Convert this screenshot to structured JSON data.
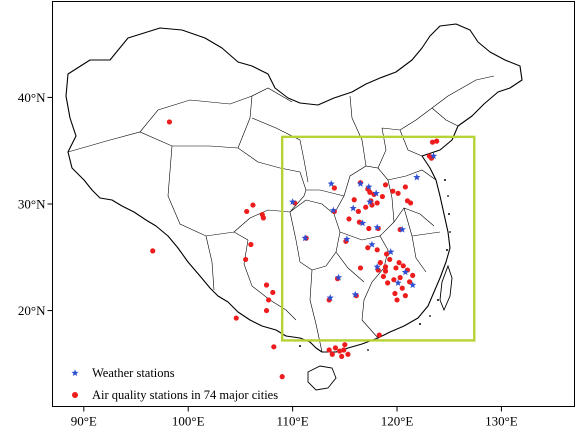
{
  "map": {
    "x_ticks": [
      {
        "value": 90,
        "label": "90°E"
      },
      {
        "value": 100,
        "label": "100°E"
      },
      {
        "value": 110,
        "label": "110°E"
      },
      {
        "value": 120,
        "label": "120°E"
      },
      {
        "value": 130,
        "label": "130°E"
      }
    ],
    "y_ticks": [
      {
        "value": 40,
        "label": "40°N"
      },
      {
        "value": 30,
        "label": "30°N"
      },
      {
        "value": 20,
        "label": "20°N"
      }
    ],
    "lon_range": [
      87,
      137
    ],
    "lat_range": [
      11,
      49
    ],
    "study_box": {
      "lon_min": 109,
      "lon_max": 127.4,
      "lat_min": 17.2,
      "lat_max": 36.3,
      "color": "#b5d334"
    },
    "colors": {
      "weather": "#2e4fd1",
      "air": "#ee1c1c"
    }
  },
  "legend": {
    "weather_label": "Weather stations",
    "air_label": "Air quality stations in 74 major cities",
    "placement": "bottom-left"
  },
  "weather_stations": [
    [
      123.5,
      34.5
    ],
    [
      121.9,
      32.5
    ],
    [
      113.7,
      31.9
    ],
    [
      116.5,
      31.9
    ],
    [
      117.3,
      31.6
    ],
    [
      118.0,
      31.0
    ],
    [
      117.4,
      30.2
    ],
    [
      115.8,
      29.6
    ],
    [
      113.9,
      29.4
    ],
    [
      116.7,
      28.2
    ],
    [
      118.1,
      27.8
    ],
    [
      111.2,
      26.8
    ],
    [
      115.2,
      26.7
    ],
    [
      117.6,
      26.2
    ],
    [
      119.4,
      25.5
    ],
    [
      120.8,
      23.6
    ],
    [
      120.1,
      22.6
    ],
    [
      118.1,
      24.1
    ],
    [
      114.4,
      23.1
    ],
    [
      116.0,
      21.5
    ],
    [
      121.5,
      22.4
    ],
    [
      113.6,
      21.2
    ],
    [
      110.0,
      30.2
    ],
    [
      120.5,
      27.6
    ]
  ],
  "air_stations": [
    [
      98.2,
      37.7
    ],
    [
      123.8,
      35.9
    ],
    [
      123.4,
      35.8
    ],
    [
      123.1,
      34.5
    ],
    [
      123.3,
      34.3
    ],
    [
      116.5,
      32.0
    ],
    [
      117.2,
      31.4
    ],
    [
      117.4,
      31.1
    ],
    [
      117.8,
      30.9
    ],
    [
      117.5,
      30.3
    ],
    [
      118.1,
      30.1
    ],
    [
      117.6,
      29.9
    ],
    [
      117.0,
      29.7
    ],
    [
      118.6,
      30.7
    ],
    [
      120.1,
      31.0
    ],
    [
      115.9,
      30.4
    ],
    [
      116.3,
      29.3
    ],
    [
      114.0,
      29.3
    ],
    [
      115.4,
      28.6
    ],
    [
      116.4,
      28.3
    ],
    [
      117.3,
      27.7
    ],
    [
      118.2,
      27.7
    ],
    [
      120.3,
      27.6
    ],
    [
      121.0,
      30.3
    ],
    [
      111.3,
      26.8
    ],
    [
      115.1,
      26.5
    ],
    [
      117.2,
      25.9
    ],
    [
      118.1,
      25.7
    ],
    [
      119.0,
      25.3
    ],
    [
      119.3,
      24.8
    ],
    [
      120.2,
      24.5
    ],
    [
      119.9,
      24.0
    ],
    [
      120.6,
      24.2
    ],
    [
      121.0,
      23.8
    ],
    [
      121.5,
      23.3
    ],
    [
      120.3,
      23.1
    ],
    [
      121.2,
      22.7
    ],
    [
      119.7,
      22.9
    ],
    [
      120.5,
      22.1
    ],
    [
      120.8,
      21.4
    ],
    [
      119.8,
      21.6
    ],
    [
      120.0,
      21.0
    ],
    [
      118.7,
      23.2
    ],
    [
      118.2,
      23.8
    ],
    [
      118.9,
      24.1
    ],
    [
      118.4,
      24.5
    ],
    [
      118.9,
      23.7
    ],
    [
      119.1,
      22.6
    ],
    [
      116.5,
      24.0
    ],
    [
      114.3,
      23.0
    ],
    [
      116.1,
      21.4
    ],
    [
      118.3,
      17.7
    ],
    [
      113.5,
      21.0
    ],
    [
      110.2,
      30.1
    ],
    [
      114.0,
      31.5
    ],
    [
      118.9,
      31.8
    ],
    [
      119.6,
      31.2
    ],
    [
      120.8,
      31.6
    ],
    [
      121.3,
      30.1
    ],
    [
      114.1,
      16.5
    ],
    [
      114.5,
      16.2
    ],
    [
      114.9,
      16.3
    ],
    [
      113.5,
      16.3
    ],
    [
      113.8,
      15.9
    ],
    [
      115.3,
      15.9
    ],
    [
      114.7,
      15.7
    ],
    [
      115.0,
      16.8
    ],
    [
      108.2,
      16.6
    ],
    [
      109.0,
      13.8
    ],
    [
      105.6,
      29.3
    ],
    [
      105.5,
      24.8
    ],
    [
      104.6,
      19.3
    ],
    [
      106.0,
      26.2
    ],
    [
      107.5,
      20.0
    ],
    [
      108.1,
      21.7
    ],
    [
      107.7,
      21.0
    ],
    [
      107.5,
      22.4
    ],
    [
      107.1,
      29.0
    ],
    [
      106.2,
      29.9
    ],
    [
      107.2,
      28.7
    ],
    [
      96.6,
      25.6
    ]
  ]
}
